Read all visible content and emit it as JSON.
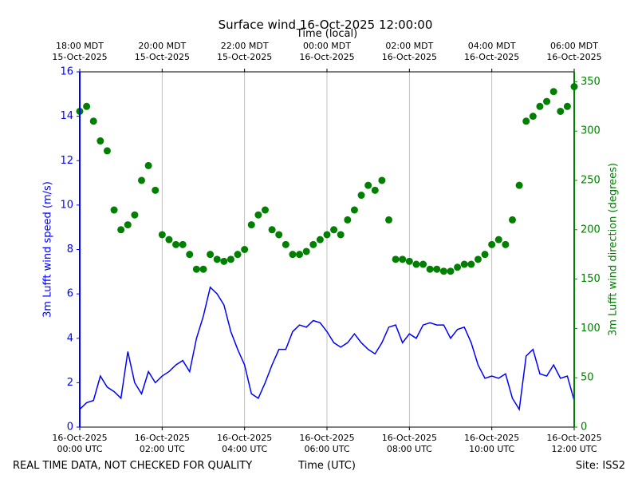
{
  "chart_data": {
    "type": "line",
    "title": "Surface wind 16-Oct-2025 12:00:00",
    "x_label": "Time (UTC)",
    "top_x_label": "Time (local)",
    "y_label": "3m Lufft wind speed (m/s)",
    "y2_label": "3m Lufft wind direction (degrees)",
    "note_left": "REAL TIME DATA, NOT CHECKED FOR QUALITY",
    "note_right": "Site: ISS2",
    "x": [
      0,
      10,
      20,
      30,
      40,
      50,
      60,
      70,
      80,
      90,
      100,
      110,
      120,
      130,
      140,
      150,
      160,
      170,
      180,
      190,
      200,
      210,
      220,
      230,
      240,
      250,
      260,
      270,
      280,
      290,
      300,
      310,
      320,
      330,
      340,
      350,
      360,
      370,
      380,
      390,
      400,
      410,
      420,
      430,
      440,
      450,
      460,
      470,
      480,
      490,
      500,
      510,
      520,
      530,
      540,
      550,
      560,
      570,
      580,
      590,
      600,
      610,
      620,
      630,
      640,
      650,
      660,
      670,
      680,
      690,
      700,
      710,
      720
    ],
    "xlim": [
      0,
      720
    ],
    "xticks": [
      {
        "value": 0,
        "label": "16-Oct-2025\n00:00 UTC"
      },
      {
        "value": 120,
        "label": "16-Oct-2025\n02:00 UTC"
      },
      {
        "value": 240,
        "label": "16-Oct-2025\n04:00 UTC"
      },
      {
        "value": 360,
        "label": "16-Oct-2025\n06:00 UTC"
      },
      {
        "value": 480,
        "label": "16-Oct-2025\n08:00 UTC"
      },
      {
        "value": 600,
        "label": "16-Oct-2025\n10:00 UTC"
      },
      {
        "value": 720,
        "label": "16-Oct-2025\n12:00 UTC"
      }
    ],
    "top_xticks": [
      {
        "value": 0,
        "label": "18:00 MDT\n15-Oct-2025"
      },
      {
        "value": 120,
        "label": "20:00 MDT\n15-Oct-2025"
      },
      {
        "value": 240,
        "label": "22:00 MDT\n15-Oct-2025"
      },
      {
        "value": 360,
        "label": "00:00 MDT\n16-Oct-2025"
      },
      {
        "value": 480,
        "label": "02:00 MDT\n16-Oct-2025"
      },
      {
        "value": 600,
        "label": "04:00 MDT\n16-Oct-2025"
      },
      {
        "value": 720,
        "label": "06:00 MDT\n16-Oct-2025"
      }
    ],
    "ylim": [
      0,
      16
    ],
    "yticks": [
      0,
      2,
      4,
      6,
      8,
      10,
      12,
      14,
      16
    ],
    "y2lim": [
      0,
      360
    ],
    "y2ticks": [
      0,
      50,
      100,
      150,
      200,
      250,
      300,
      350
    ],
    "grid": "x",
    "series": [
      {
        "name": "3m Lufft wind speed (m/s)",
        "type": "line",
        "axis": "y",
        "color": "#0000ff",
        "values": [
          0.8,
          1.1,
          1.2,
          2.3,
          1.8,
          1.6,
          1.3,
          3.4,
          2.0,
          1.5,
          2.5,
          2.0,
          2.3,
          2.5,
          2.8,
          3.0,
          2.5,
          4.0,
          5.0,
          6.3,
          6.0,
          5.5,
          4.3,
          3.5,
          2.8,
          1.5,
          1.3,
          2.0,
          2.8,
          3.5,
          3.5,
          4.3,
          4.6,
          4.5,
          4.8,
          4.7,
          4.3,
          3.8,
          3.6,
          3.8,
          4.2,
          3.8,
          3.5,
          3.3,
          3.8,
          4.5,
          4.6,
          3.8,
          4.2,
          4.0,
          4.6,
          4.7,
          4.6,
          4.6,
          4.0,
          4.4,
          4.5,
          3.8,
          2.8,
          2.2,
          2.3,
          2.2,
          2.4,
          1.3,
          0.8,
          3.2,
          3.5,
          2.4,
          2.3,
          2.8,
          2.2,
          2.3,
          1.2
        ]
      },
      {
        "name": "3m Lufft wind direction (degrees)",
        "type": "scatter",
        "axis": "y2",
        "color": "#008000",
        "values": [
          320,
          325,
          310,
          290,
          280,
          220,
          200,
          205,
          215,
          250,
          265,
          240,
          195,
          190,
          185,
          185,
          175,
          160,
          160,
          175,
          170,
          168,
          170,
          175,
          180,
          205,
          215,
          220,
          200,
          195,
          185,
          175,
          175,
          178,
          185,
          190,
          195,
          200,
          195,
          210,
          220,
          235,
          245,
          240,
          250,
          210,
          170,
          170,
          168,
          165,
          165,
          160,
          160,
          158,
          158,
          162,
          165,
          165,
          170,
          175,
          185,
          190,
          185,
          210,
          245,
          310,
          315,
          325,
          330,
          340,
          320,
          325,
          345
        ]
      }
    ]
  }
}
